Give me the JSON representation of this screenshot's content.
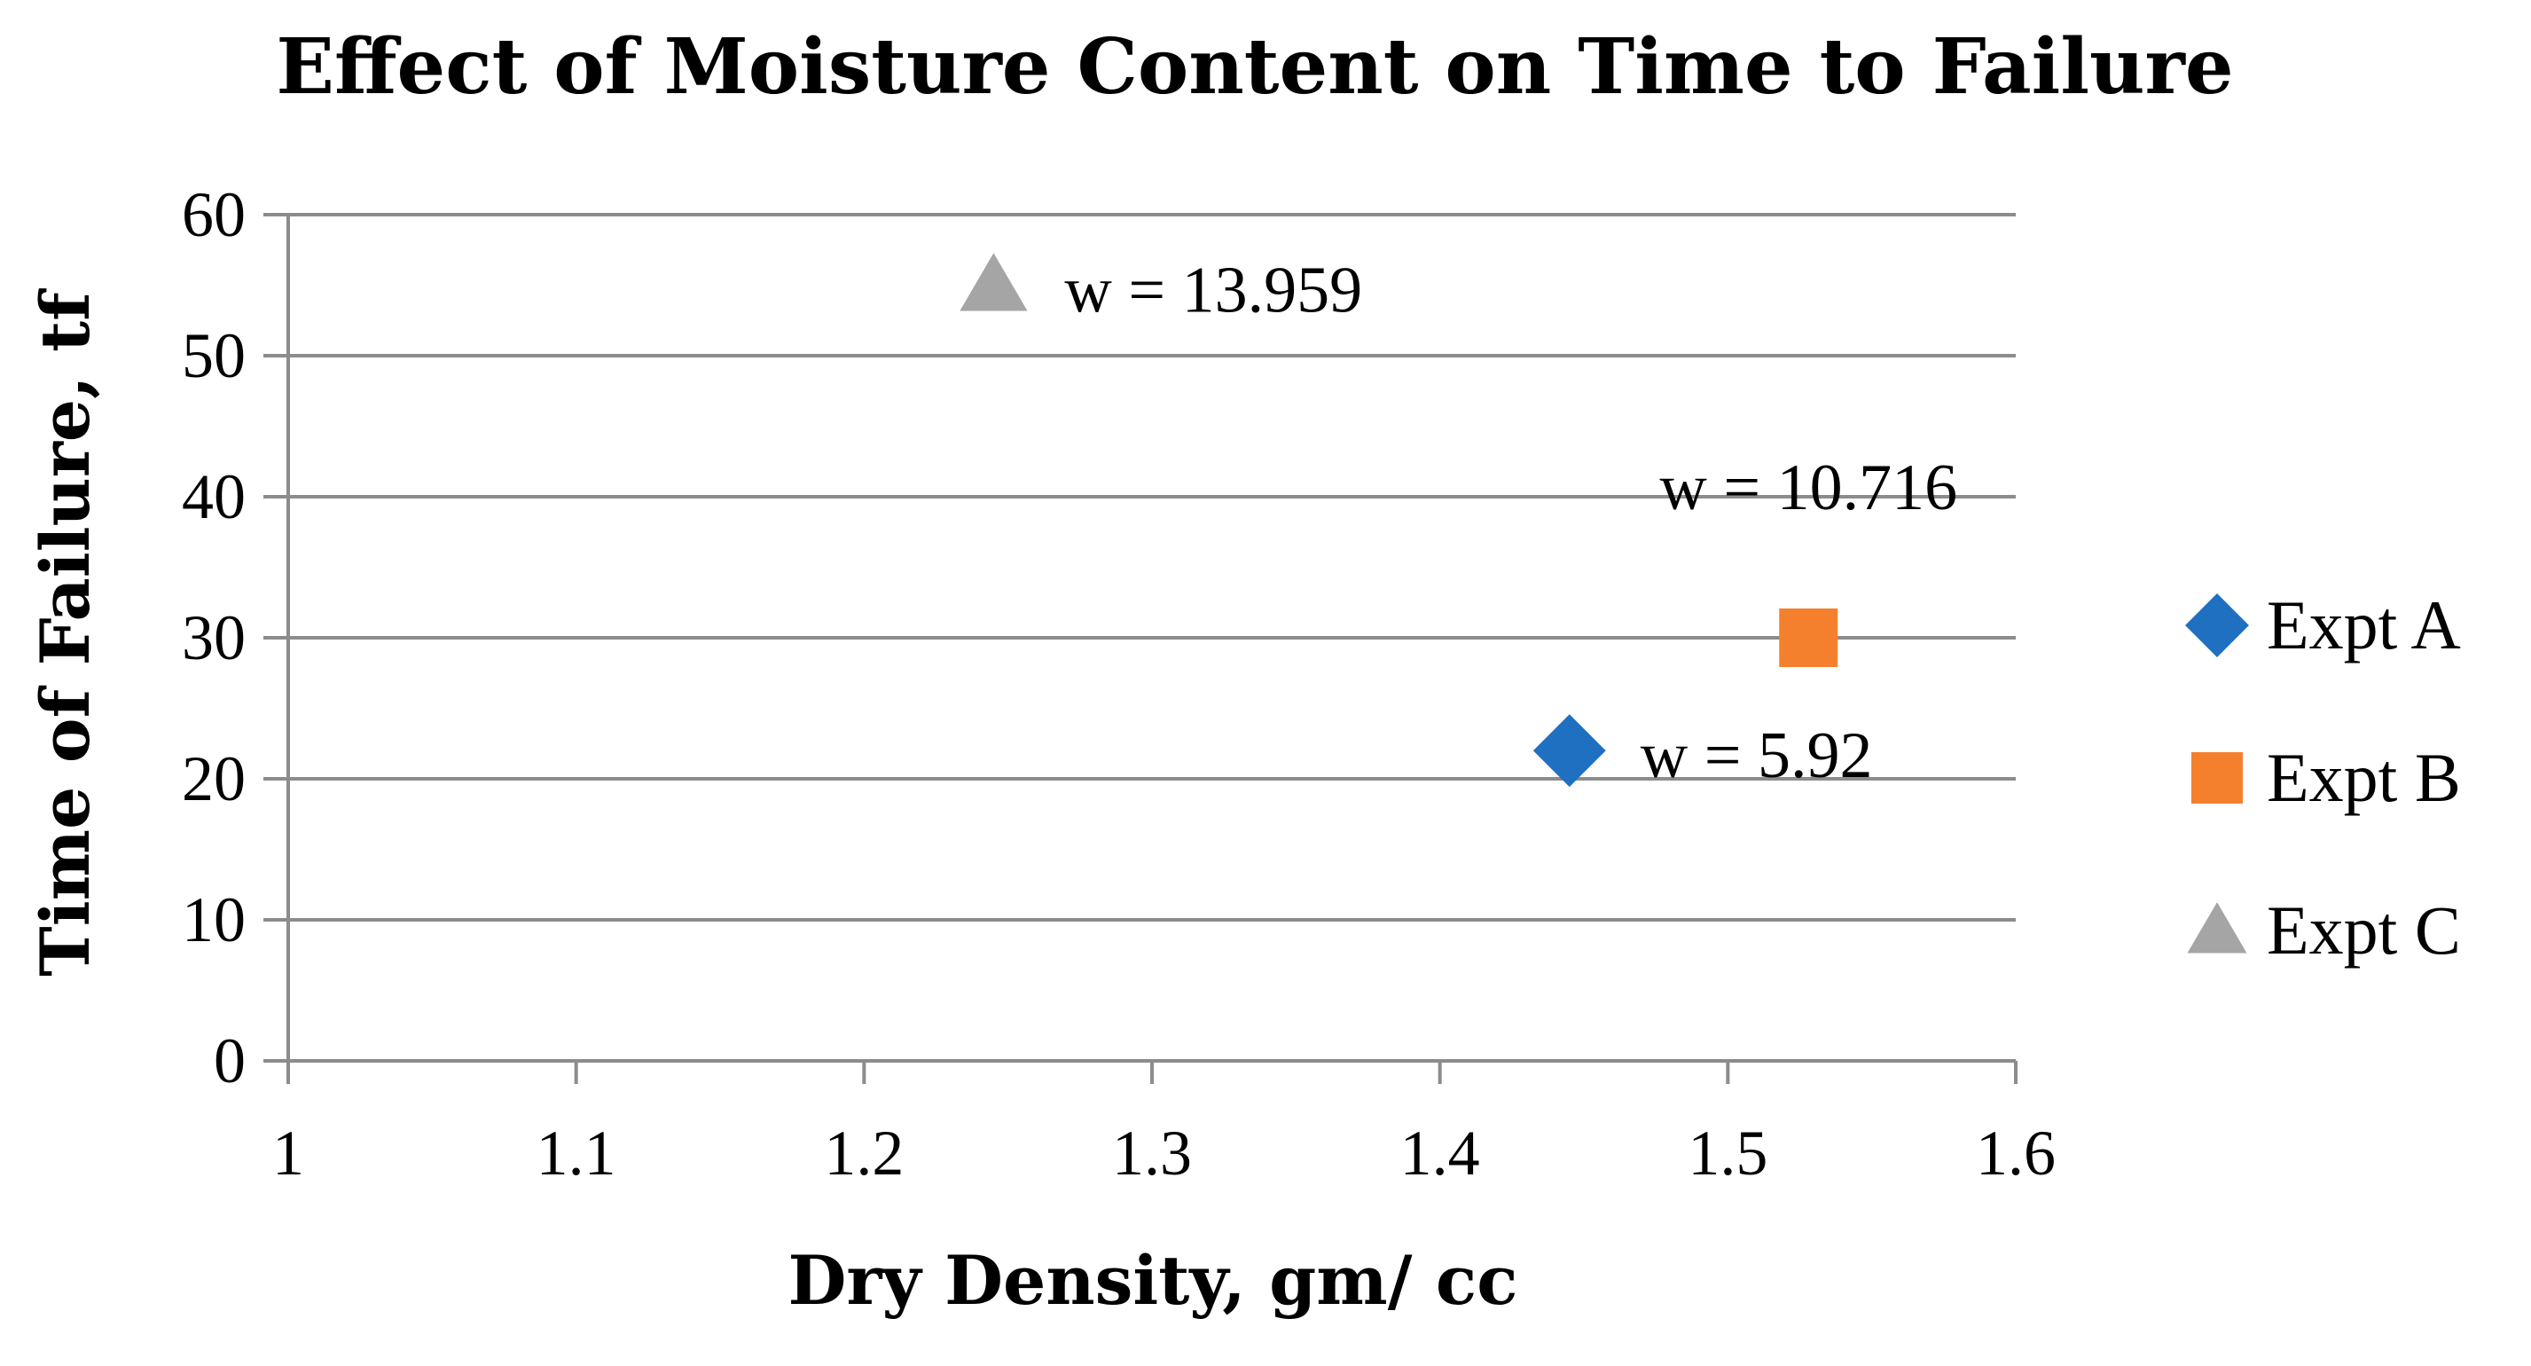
{
  "chart_data": {
    "type": "scatter",
    "title": "Effect of Moisture Content on Time to Failure",
    "xlabel": "Dry Density, gm/ cc",
    "ylabel": "Time of Failure, tf",
    "xlim": [
      1,
      1.6
    ],
    "ylim": [
      0,
      60
    ],
    "xticks": [
      "1",
      "1.1",
      "1.2",
      "1.3",
      "1.4",
      "1.5",
      "1.6"
    ],
    "yticks": [
      "0",
      "10",
      "20",
      "30",
      "40",
      "50",
      "60"
    ],
    "grid": "horizontal",
    "legend_position": "right",
    "series": [
      {
        "name": "Expt A",
        "marker": "diamond",
        "color": "#1F70C1",
        "x": [
          1.445
        ],
        "y": [
          22
        ],
        "label": "w = 5.92"
      },
      {
        "name": "Expt B",
        "marker": "square",
        "color": "#F4802E",
        "x": [
          1.528
        ],
        "y": [
          30
        ],
        "label": "w = 10.716"
      },
      {
        "name": "Expt C",
        "marker": "triangle",
        "color": "#A5A5A5",
        "x": [
          1.245
        ],
        "y": [
          55
        ],
        "label": "w = 13.959"
      }
    ]
  }
}
